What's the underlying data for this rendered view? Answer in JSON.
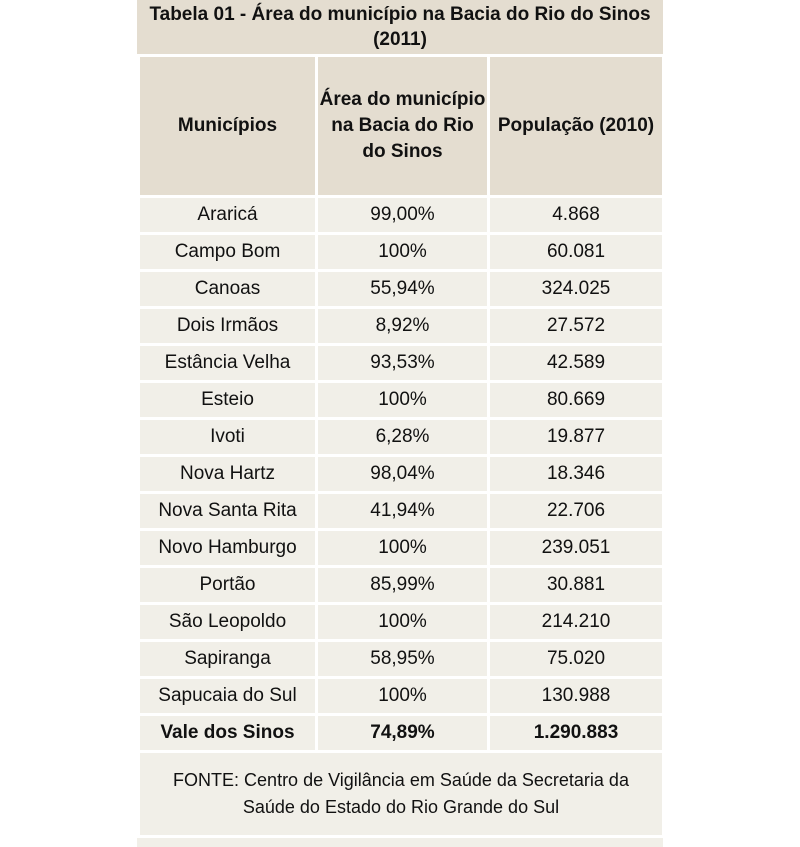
{
  "table": {
    "caption": "Tabela 01 - Área do município na Bacia do Rio do Sinos (2011)",
    "headers": [
      "Municípios",
      "Área do município na Bacia do Rio do Sinos",
      "População (2010)"
    ],
    "rows": [
      [
        "Araricá",
        "99,00%",
        "4.868"
      ],
      [
        "Campo Bom",
        "100%",
        "60.081"
      ],
      [
        "Canoas",
        "55,94%",
        "324.025"
      ],
      [
        "Dois Irmãos",
        "8,92%",
        "27.572"
      ],
      [
        "Estância Velha",
        "93,53%",
        "42.589"
      ],
      [
        "Esteio",
        "100%",
        "80.669"
      ],
      [
        "Ivoti",
        "6,28%",
        "19.877"
      ],
      [
        "Nova Hartz",
        "98,04%",
        "18.346"
      ],
      [
        "Nova Santa Rita",
        "41,94%",
        "22.706"
      ],
      [
        "Novo Hamburgo",
        "100%",
        "239.051"
      ],
      [
        "Portão",
        "85,99%",
        "30.881"
      ],
      [
        "São Leopoldo",
        "100%",
        "214.210"
      ],
      [
        "Sapiranga",
        "58,95%",
        "75.020"
      ],
      [
        "Sapucaia do Sul",
        "100%",
        "130.988"
      ]
    ],
    "total": [
      "Vale dos Sinos",
      "74,89%",
      "1.290.883"
    ],
    "source": "FONTE: Centro de Vigilância em Saúde da Secretaria da Saúde do Estado do Rio Grande do Sul"
  },
  "colors": {
    "header_bg": "#e4ddd0",
    "cell_bg": "#f1efe8",
    "border": "#ffffff"
  }
}
